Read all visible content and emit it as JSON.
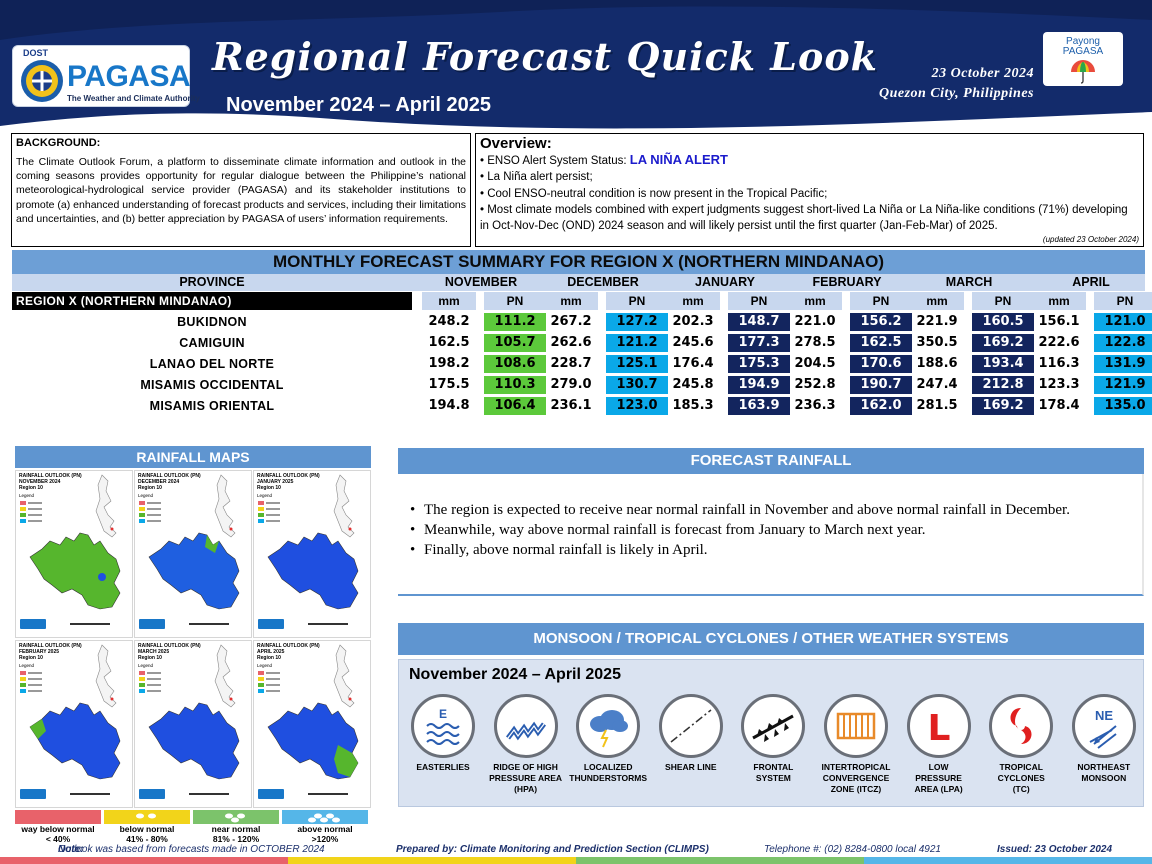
{
  "header": {
    "dost": "DOST",
    "agency": "PAGASA",
    "tagline": "The Weather and Climate Authority",
    "title": "Regional Forecast Quick Look",
    "period": "November 2024 – April 2025",
    "date": "23 October 2024",
    "place": "Quezon City, Philippines",
    "payong_line1": "Payong",
    "payong_line2": "PAGASA"
  },
  "background": {
    "title": "BACKGROUND:",
    "text": "The Climate Outlook Forum, a platform to disseminate climate information and outlook in the coming seasons provides opportunity for regular dialogue between the Philippine’s national meteorological-hydrological service provider (PAGASA) and its stakeholder institutions to promote (a) enhanced understanding of forecast products and services, including their limitations and uncertainties, and (b) better appreciation by PAGASA of users’ information requirements."
  },
  "overview": {
    "title": "Overview:",
    "enso_prefix": "• ENSO Alert System Status: ",
    "enso_status": "LA NIÑA ALERT",
    "bullets": [
      "• La Niña alert persist;",
      "• Cool ENSO-neutral condition is now present in the Tropical Pacific;",
      "• Most climate models combined with expert judgments suggest short-lived La Niña or La Niña-like conditions (71%) developing in Oct-Nov-Dec (OND) 2024 season and will likely persist until the first quarter (Jan-Feb-Mar) of 2025."
    ],
    "updated": "(updated 23 October 2024)"
  },
  "summary": {
    "title": "MONTHLY FORECAST SUMMARY FOR REGION X (NORTHERN MINDANAO)",
    "province_header": "PROVINCE",
    "region_label": "REGION X (NORTHERN MINDANAO)",
    "months": [
      "NOVEMBER",
      "DECEMBER",
      "JANUARY",
      "FEBRUARY",
      "MARCH",
      "APRIL"
    ],
    "mm_label": "mm",
    "pn_label": "PN",
    "rows": [
      {
        "province": "BUKIDNON",
        "mm": [
          "248.2",
          "267.2",
          "202.3",
          "221.0",
          "221.9",
          "156.1"
        ],
        "pn": [
          "111.2",
          "127.2",
          "148.7",
          "156.2",
          "160.5",
          "121.0"
        ]
      },
      {
        "province": "CAMIGUIN",
        "mm": [
          "162.5",
          "262.6",
          "245.6",
          "278.5",
          "350.5",
          "222.6"
        ],
        "pn": [
          "105.7",
          "121.2",
          "177.3",
          "162.5",
          "169.2",
          "122.8"
        ]
      },
      {
        "province": "LANAO DEL NORTE",
        "mm": [
          "198.2",
          "228.7",
          "176.4",
          "204.5",
          "188.6",
          "116.3"
        ],
        "pn": [
          "108.6",
          "125.1",
          "175.3",
          "170.6",
          "193.4",
          "131.9"
        ]
      },
      {
        "province": "MISAMIS OCCIDENTAL",
        "mm": [
          "175.5",
          "279.0",
          "245.8",
          "252.8",
          "247.4",
          "123.3"
        ],
        "pn": [
          "110.3",
          "130.7",
          "194.9",
          "190.7",
          "212.8",
          "121.9"
        ]
      },
      {
        "province": "MISAMIS ORIENTAL",
        "mm": [
          "194.8",
          "236.1",
          "185.3",
          "236.3",
          "281.5",
          "178.4"
        ],
        "pn": [
          "106.4",
          "123.0",
          "163.9",
          "162.0",
          "169.2",
          "135.0"
        ]
      }
    ],
    "colors": {
      "near_normal": "#5cc93b",
      "above_normal": "#0aa8e8",
      "way_above_normal": "#13255e"
    }
  },
  "rainfall_maps": {
    "title": "RAINFALL MAPS",
    "panels": [
      {
        "line1": "RAINFALL OUTLOOK (PN)",
        "line2": "NOVEMBER 2024",
        "line3": "Region 10",
        "fill": "#56b62d"
      },
      {
        "line1": "RAINFALL OUTLOOK (PN)",
        "line2": "DECEMBER 2024",
        "line3": "Region 10",
        "fill": "#1f5fe0"
      },
      {
        "line1": "RAINFALL OUTLOOK (PN)",
        "line2": "JANUARY 2025",
        "line3": "Region 10",
        "fill": "#1f4fe0"
      },
      {
        "line1": "RAINFALL OUTLOOK (PN)",
        "line2": "FEBRUARY 2025",
        "line3": "Region 10",
        "fill": "#1f4fe0"
      },
      {
        "line1": "RAINFALL OUTLOOK (PN)",
        "line2": "MARCH 2025",
        "line3": "Region 10",
        "fill": "#1f4fe0"
      },
      {
        "line1": "RAINFALL OUTLOOK (PN)",
        "line2": "APRIL 2025",
        "line3": "Region 10",
        "fill": "#1f4fe0"
      }
    ],
    "legend_title": "Legend",
    "scale": [
      {
        "line1": "way below normal",
        "line2": "< 40%",
        "color": "#e8626a"
      },
      {
        "line1": "below normal",
        "line2": "41% - 80%",
        "color": "#f2d41a"
      },
      {
        "line1": "near normal",
        "line2": "81% - 120%",
        "color": "#7cc36b"
      },
      {
        "line1": "above normal",
        "line2": ">120%",
        "color": "#55b6e8"
      }
    ]
  },
  "forecast_rainfall": {
    "title": "FORECAST RAINFALL",
    "bullets": [
      "The region is expected to receive near normal rainfall in November and above normal rainfall in December.",
      "Meanwhile, way above normal rainfall is forecast from January to March next year.",
      "Finally, above normal rainfall is likely in April."
    ]
  },
  "weather_systems": {
    "title": "MONSOON / TROPICAL CYCLONES / OTHER WEATHER SYSTEMS",
    "period": "November 2024 – April 2025",
    "items": [
      {
        "line1": "EASTERLIES",
        "line2": "",
        "line3": "",
        "icon": "easterlies-icon"
      },
      {
        "line1": "RIDGE OF HIGH",
        "line2": "PRESSURE AREA",
        "line3": "(HPA)",
        "icon": "ridge-icon"
      },
      {
        "line1": "LOCALIZED",
        "line2": "THUNDERSTORMS",
        "line3": "",
        "icon": "thunderstorm-icon"
      },
      {
        "line1": "SHEAR LINE",
        "line2": "",
        "line3": "",
        "icon": "shear-line-icon"
      },
      {
        "line1": "FRONTAL",
        "line2": "SYSTEM",
        "line3": "",
        "icon": "frontal-system-icon"
      },
      {
        "line1": "INTERTROPICAL",
        "line2": "CONVERGENCE",
        "line3": "ZONE (ITCZ)",
        "icon": "itcz-icon"
      },
      {
        "line1": "LOW",
        "line2": "PRESSURE",
        "line3": "AREA (LPA)",
        "icon": "lpa-icon"
      },
      {
        "line1": "TROPICAL",
        "line2": "CYCLONES",
        "line3": "(TC)",
        "icon": "tropical-cyclone-icon"
      },
      {
        "line1": "NORTHEAST",
        "line2": "MONSOON",
        "line3": "",
        "icon": "northeast-monsoon-icon"
      }
    ],
    "icon_text_e": "E",
    "icon_text_l": "L",
    "icon_text_ne": "NE"
  },
  "footer": {
    "note_label": "Note:",
    "note": " Outlook was based from forecasts made in OCTOBER 2024",
    "prepared": "Prepared by: Climate Monitoring and Prediction Section (CLIMPS)",
    "telephone": "Telephone #: (02) 8284-0800 local 4921",
    "issued": "Issued: 23 October 2024"
  }
}
